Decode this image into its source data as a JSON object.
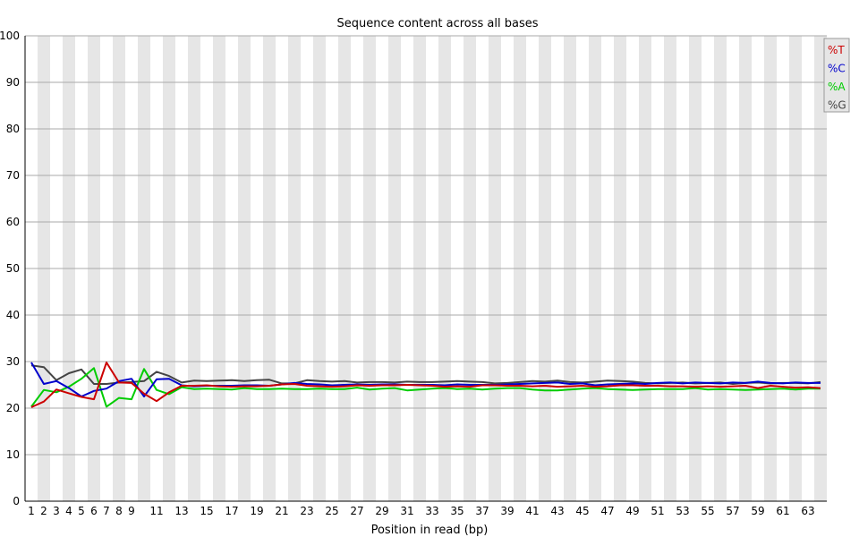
{
  "chart_data": {
    "type": "line",
    "title": "Sequence content across all bases",
    "xlabel": "Position in read (bp)",
    "ylabel": "",
    "ylim": [
      0,
      100
    ],
    "yticks": [
      0,
      10,
      20,
      30,
      40,
      50,
      60,
      70,
      80,
      90,
      100
    ],
    "categories": [
      "1",
      "2",
      "3",
      "4",
      "5",
      "6",
      "7",
      "8",
      "9",
      "10",
      "11",
      "12",
      "13",
      "14",
      "15",
      "16",
      "17",
      "18",
      "19",
      "20",
      "21",
      "22",
      "23",
      "24",
      "25",
      "26",
      "27",
      "28",
      "29",
      "30",
      "31",
      "32",
      "33",
      "34",
      "35",
      "36",
      "37",
      "38",
      "39",
      "40",
      "41",
      "42",
      "43",
      "44",
      "45",
      "46",
      "47",
      "48",
      "49",
      "50",
      "51",
      "52",
      "53",
      "54",
      "55",
      "56",
      "57",
      "58",
      "59",
      "60",
      "61",
      "62",
      "63",
      "64"
    ],
    "xtick_labels": [
      "1",
      "2",
      "3",
      "4",
      "5",
      "6",
      "7",
      "8",
      "9",
      "",
      "11",
      "",
      "13",
      "",
      "15",
      "",
      "17",
      "",
      "19",
      "",
      "21",
      "",
      "23",
      "",
      "25",
      "",
      "27",
      "",
      "29",
      "",
      "31",
      "",
      "33",
      "",
      "35",
      "",
      "37",
      "",
      "39",
      "",
      "41",
      "",
      "43",
      "",
      "45",
      "",
      "47",
      "",
      "49",
      "",
      "51",
      "",
      "53",
      "",
      "55",
      "",
      "57",
      "",
      "59",
      "",
      "61",
      "",
      "63",
      ""
    ],
    "grid": true,
    "legend_position": "top-right",
    "series": [
      {
        "name": "%T",
        "color": "#cc0000",
        "values": [
          20.2,
          21.4,
          24.0,
          23.2,
          22.4,
          21.9,
          29.8,
          25.5,
          25.4,
          23.1,
          21.5,
          23.4,
          24.8,
          24.8,
          24.9,
          24.7,
          24.6,
          24.7,
          24.7,
          24.8,
          25.1,
          25.2,
          24.8,
          24.7,
          24.6,
          24.7,
          24.9,
          24.8,
          24.9,
          24.9,
          25.0,
          24.9,
          24.8,
          24.6,
          24.7,
          24.6,
          24.9,
          24.9,
          24.8,
          24.8,
          24.7,
          24.8,
          24.6,
          24.7,
          24.8,
          24.6,
          24.7,
          24.9,
          24.9,
          24.8,
          24.8,
          24.7,
          24.7,
          24.6,
          24.7,
          24.6,
          24.7,
          24.8,
          24.3,
          24.8,
          24.6,
          24.4,
          24.5,
          24.3
        ]
      },
      {
        "name": "%C",
        "color": "#0000cc",
        "values": [
          29.8,
          25.2,
          25.8,
          24.3,
          22.5,
          23.7,
          24.2,
          25.8,
          26.3,
          22.5,
          26.2,
          26.3,
          24.9,
          24.7,
          24.8,
          24.8,
          24.8,
          24.9,
          24.9,
          24.8,
          25.1,
          25.4,
          25.2,
          25.1,
          24.9,
          25.0,
          25.1,
          25.0,
          25.1,
          25.1,
          25.0,
          25.0,
          25.0,
          24.9,
          25.1,
          25.0,
          25.0,
          25.0,
          25.1,
          25.2,
          25.3,
          25.4,
          25.5,
          25.2,
          25.3,
          24.9,
          25.1,
          25.2,
          25.3,
          25.2,
          25.4,
          25.5,
          25.3,
          25.5,
          25.4,
          25.3,
          25.5,
          25.4,
          25.7,
          25.4,
          25.3,
          25.5,
          25.4,
          25.4
        ]
      },
      {
        "name": "%A",
        "color": "#00cc00",
        "values": [
          20.3,
          23.9,
          23.4,
          24.6,
          26.3,
          28.6,
          20.3,
          22.2,
          21.9,
          28.4,
          23.9,
          23.0,
          24.5,
          24.1,
          24.2,
          24.1,
          24.0,
          24.3,
          24.1,
          24.1,
          24.2,
          24.1,
          24.1,
          24.2,
          24.1,
          24.1,
          24.4,
          24.0,
          24.2,
          24.3,
          23.8,
          24.0,
          24.2,
          24.3,
          24.1,
          24.2,
          24.0,
          24.2,
          24.3,
          24.3,
          24.0,
          23.8,
          23.8,
          24.0,
          24.2,
          24.3,
          24.1,
          24.0,
          23.9,
          24.0,
          24.1,
          24.1,
          24.1,
          24.3,
          24.0,
          24.1,
          24.0,
          23.9,
          24.0,
          24.1,
          24.2,
          24.0,
          24.2,
          24.2
        ]
      },
      {
        "name": "%G",
        "color": "#444444",
        "values": [
          29.2,
          28.8,
          26.0,
          27.5,
          28.3,
          25.2,
          25.2,
          25.5,
          25.6,
          25.8,
          27.8,
          26.9,
          25.5,
          25.9,
          25.8,
          25.9,
          26.0,
          25.8,
          26.0,
          26.1,
          25.3,
          25.3,
          26.0,
          25.8,
          25.7,
          25.8,
          25.5,
          25.6,
          25.6,
          25.5,
          25.7,
          25.6,
          25.6,
          25.7,
          25.8,
          25.7,
          25.6,
          25.3,
          25.4,
          25.6,
          25.8,
          25.7,
          25.9,
          25.6,
          25.5,
          25.7,
          25.9,
          25.8,
          25.7,
          25.4,
          25.3,
          25.4,
          25.5,
          25.3,
          25.4,
          25.5,
          25.2,
          25.4,
          25.5,
          25.3,
          25.4,
          25.4,
          25.3,
          25.6
        ]
      }
    ]
  }
}
